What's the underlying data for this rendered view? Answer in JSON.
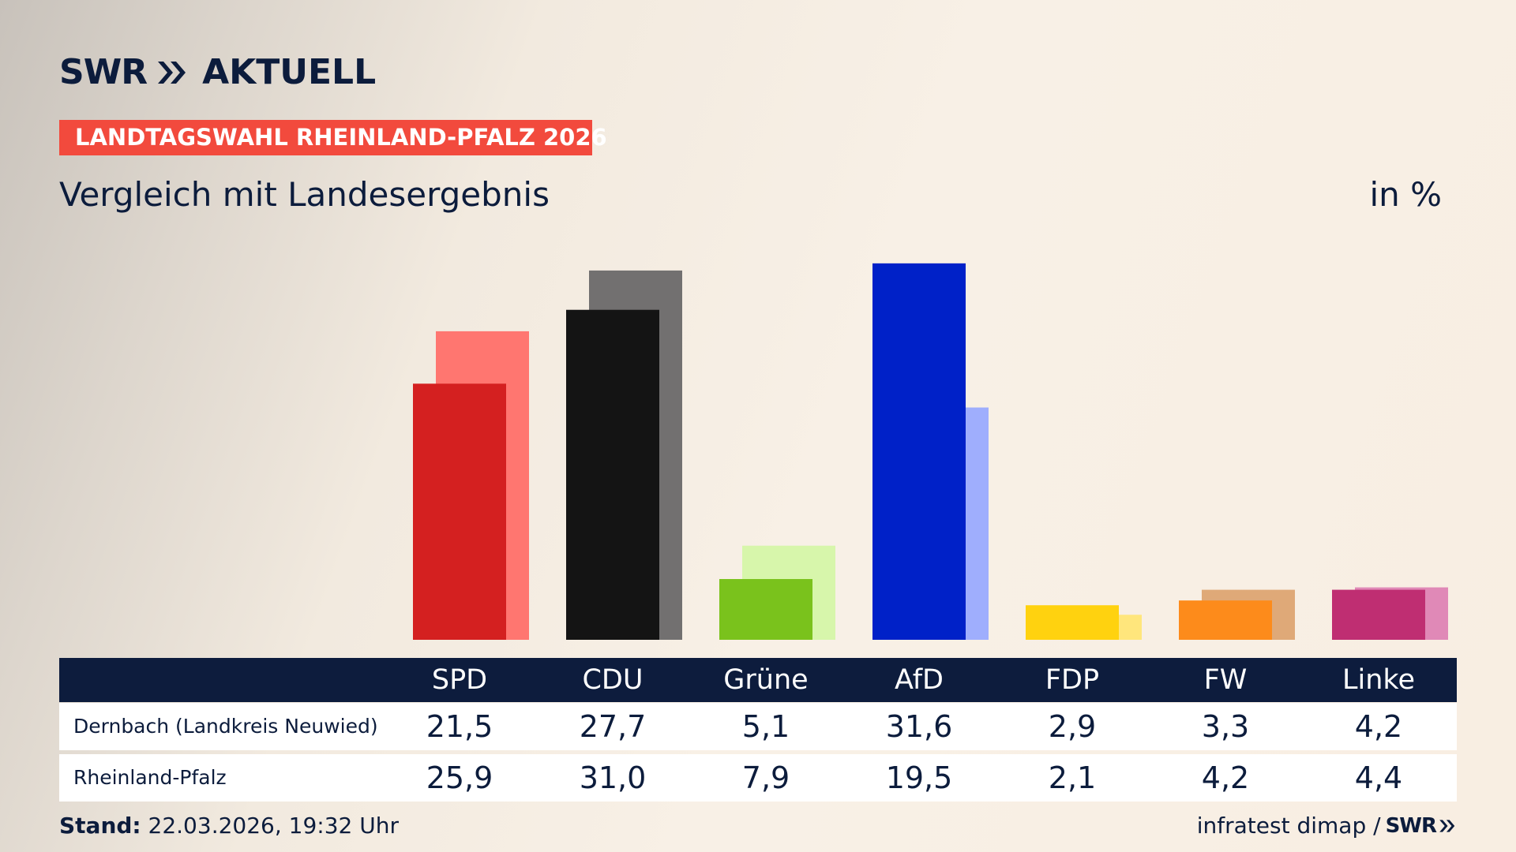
{
  "header": {
    "logo_swr": "SWR",
    "logo_aktuell": "AKTUELL",
    "banner": "LANDTAGSWAHL RHEINLAND-PFALZ 2026",
    "subtitle": "Vergleich mit Landesergebnis",
    "unit": "in %"
  },
  "table": {
    "parties": [
      "SPD",
      "CDU",
      "Grüne",
      "AfD",
      "FDP",
      "FW",
      "Linke"
    ],
    "rows": [
      {
        "label": "Dernbach (Landkreis Neuwied)",
        "values": [
          "21,5",
          "27,7",
          "5,1",
          "31,6",
          "2,9",
          "3,3",
          "4,2"
        ]
      },
      {
        "label": "Rheinland-Pfalz",
        "values": [
          "25,9",
          "31,0",
          "7,9",
          "19,5",
          "2,1",
          "4,2",
          "4,4"
        ]
      }
    ]
  },
  "footer": {
    "stand_label": "Stand:",
    "stand_value": "22.03.2026, 19:32 Uhr",
    "source": "infratest dimap /",
    "source_logo": "SWR"
  },
  "chart_data": {
    "type": "bar",
    "categories": [
      "SPD",
      "CDU",
      "Grüne",
      "AfD",
      "FDP",
      "FW",
      "Linke"
    ],
    "series": [
      {
        "name": "Dernbach (Landkreis Neuwied)",
        "values": [
          21.5,
          27.7,
          5.1,
          31.6,
          2.9,
          3.3,
          4.2
        ]
      },
      {
        "name": "Rheinland-Pfalz",
        "values": [
          25.9,
          31.0,
          7.9,
          19.5,
          2.1,
          4.2,
          4.4
        ]
      }
    ],
    "colors": {
      "primary": [
        "#d42020",
        "#141414",
        "#7ac21c",
        "#0021c8",
        "#ffd20f",
        "#fd8b1b",
        "#bf2e72"
      ],
      "secondary": [
        "#ff7670",
        "#727070",
        "#d7f6ab",
        "#9faefd",
        "#ffe67c",
        "#dfa978",
        "#e089b7"
      ]
    },
    "ylim": [
      0,
      34
    ],
    "grid": false,
    "legend": "table-below",
    "unit": "in %"
  }
}
